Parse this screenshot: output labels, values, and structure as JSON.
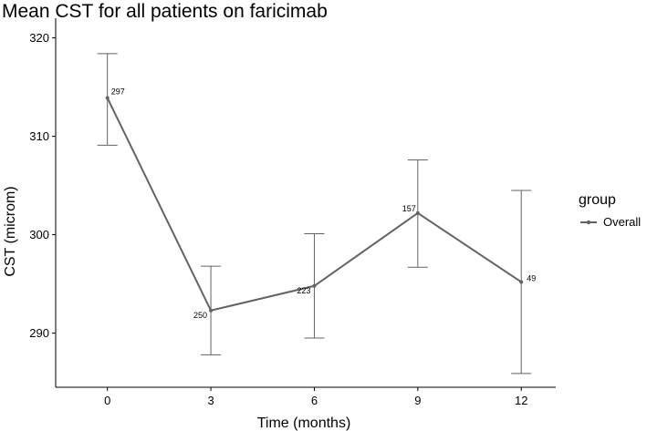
{
  "chart_data": {
    "type": "line",
    "title": "Mean CST for all patients on faricimab",
    "xlabel": "Time (months)",
    "ylabel": "CST (microm)",
    "x": [
      0,
      3,
      6,
      9,
      12
    ],
    "xticks": [
      "0",
      "3",
      "6",
      "9",
      "12"
    ],
    "yticks": [
      "290",
      "300",
      "310",
      "320"
    ],
    "xlim": [
      -1.5,
      13
    ],
    "ylim": [
      284.5,
      322
    ],
    "grid": false,
    "series": [
      {
        "name": "Overall",
        "color": "#636363",
        "values": [
          313.9,
          292.3,
          294.8,
          302.2,
          295.2
        ],
        "error_low": [
          309.1,
          287.8,
          289.5,
          296.7,
          285.9
        ],
        "error_high": [
          318.4,
          296.8,
          300.1,
          307.6,
          304.5
        ],
        "labels": [
          "297",
          "250",
          "223",
          "157",
          "49"
        ]
      }
    ],
    "legend": {
      "title": "group",
      "position": "right"
    }
  }
}
